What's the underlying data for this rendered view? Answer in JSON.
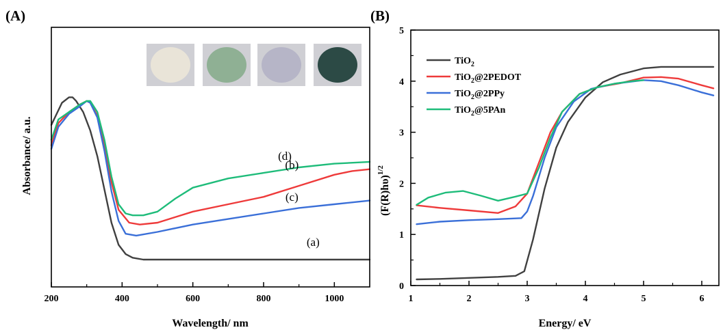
{
  "chart_data": [
    {
      "panel": "(A)",
      "type": "line",
      "xlabel": "Wavelength/ nm",
      "ylabel": "Absorbance/ a.u.",
      "xlim": [
        200,
        1100
      ],
      "ylim": [
        0,
        1
      ],
      "xticks": [
        200,
        400,
        600,
        800,
        1000
      ],
      "yticks": [],
      "grid": false,
      "legend": "none",
      "inset": "four sample powder photos (white, light green, light grey-blue, dark green)",
      "series": [
        {
          "label": "(a)",
          "color": "#404040",
          "x": [
            200,
            230,
            250,
            260,
            270,
            290,
            310,
            330,
            350,
            370,
            390,
            410,
            430,
            460,
            500,
            600,
            800,
            1000,
            1100
          ],
          "y": [
            0.73,
            0.85,
            0.88,
            0.88,
            0.86,
            0.8,
            0.7,
            0.56,
            0.38,
            0.2,
            0.08,
            0.03,
            0.01,
            0.0,
            0.0,
            0.0,
            0.0,
            0.0,
            0.0
          ]
        },
        {
          "label": "(b)",
          "color": "#ee3a3a",
          "x": [
            200,
            220,
            250,
            280,
            300,
            310,
            330,
            350,
            370,
            390,
            420,
            450,
            500,
            550,
            600,
            700,
            800,
            900,
            1000,
            1050,
            1100
          ],
          "y": [
            0.62,
            0.74,
            0.8,
            0.84,
            0.86,
            0.85,
            0.78,
            0.62,
            0.42,
            0.27,
            0.2,
            0.19,
            0.2,
            0.23,
            0.26,
            0.3,
            0.34,
            0.4,
            0.46,
            0.48,
            0.49
          ]
        },
        {
          "label": "(c)",
          "color": "#3a6fd8",
          "x": [
            200,
            220,
            250,
            280,
            300,
            310,
            330,
            350,
            370,
            390,
            410,
            440,
            500,
            600,
            700,
            800,
            900,
            1000,
            1100
          ],
          "y": [
            0.6,
            0.72,
            0.79,
            0.83,
            0.86,
            0.85,
            0.77,
            0.59,
            0.37,
            0.21,
            0.14,
            0.13,
            0.15,
            0.19,
            0.22,
            0.25,
            0.28,
            0.3,
            0.32
          ]
        },
        {
          "label": "(d)",
          "color": "#1ebc7a",
          "x": [
            200,
            220,
            250,
            280,
            300,
            310,
            330,
            350,
            370,
            390,
            410,
            430,
            460,
            500,
            550,
            600,
            700,
            800,
            900,
            1000,
            1100
          ],
          "y": [
            0.65,
            0.76,
            0.8,
            0.84,
            0.86,
            0.86,
            0.8,
            0.65,
            0.45,
            0.3,
            0.25,
            0.24,
            0.24,
            0.26,
            0.33,
            0.39,
            0.44,
            0.47,
            0.5,
            0.52,
            0.53
          ]
        }
      ]
    },
    {
      "panel": "(B)",
      "type": "line",
      "xlabel": "Energy/ eV",
      "ylabel": "(F(R)hυ)1/2",
      "xlim": [
        1,
        6.4
      ],
      "ylim": [
        0,
        5
      ],
      "xticks": [
        1,
        2,
        3,
        4,
        5,
        6
      ],
      "yticks": [
        0,
        1,
        2,
        3,
        4,
        5
      ],
      "grid": false,
      "legend": "top-left",
      "series": [
        {
          "name": "TiO2",
          "color": "#404040",
          "x": [
            1.1,
            1.5,
            2.0,
            2.5,
            2.8,
            2.95,
            3.1,
            3.3,
            3.5,
            3.7,
            4.0,
            4.3,
            4.6,
            5.0,
            5.3,
            5.6,
            6.0,
            6.2
          ],
          "y": [
            0.12,
            0.13,
            0.15,
            0.17,
            0.19,
            0.28,
            0.9,
            1.9,
            2.7,
            3.2,
            3.68,
            3.98,
            4.13,
            4.25,
            4.28,
            4.28,
            4.28,
            4.28
          ]
        },
        {
          "name": "TiO2@2PEDOT",
          "color": "#ee3a3a",
          "x": [
            1.1,
            1.5,
            2.0,
            2.5,
            2.8,
            3.0,
            3.2,
            3.4,
            3.6,
            3.9,
            4.2,
            4.6,
            5.0,
            5.3,
            5.6,
            6.0,
            6.2
          ],
          "y": [
            1.57,
            1.52,
            1.47,
            1.42,
            1.55,
            1.8,
            2.4,
            3.0,
            3.4,
            3.75,
            3.88,
            3.96,
            4.07,
            4.08,
            4.05,
            3.92,
            3.86
          ]
        },
        {
          "name": "TiO2@2PPy",
          "color": "#3a6fd8",
          "x": [
            1.1,
            1.5,
            2.0,
            2.5,
            2.9,
            3.0,
            3.1,
            3.3,
            3.5,
            3.8,
            4.1,
            4.5,
            5.0,
            5.3,
            5.6,
            6.0,
            6.2
          ],
          "y": [
            1.2,
            1.25,
            1.28,
            1.3,
            1.32,
            1.45,
            1.75,
            2.5,
            3.1,
            3.6,
            3.85,
            3.95,
            4.02,
            4.0,
            3.92,
            3.78,
            3.72
          ]
        },
        {
          "name": "TiO2@5PAn",
          "color": "#1ebc7a",
          "x": [
            1.1,
            1.3,
            1.6,
            1.9,
            2.2,
            2.5,
            2.8,
            3.0,
            3.2,
            3.4,
            3.6,
            3.9,
            4.2,
            4.5,
            4.8,
            5.0
          ],
          "y": [
            1.58,
            1.72,
            1.82,
            1.85,
            1.76,
            1.66,
            1.74,
            1.8,
            2.3,
            2.9,
            3.4,
            3.75,
            3.88,
            3.95,
            4.0,
            4.02
          ]
        }
      ]
    }
  ],
  "legend_B": [
    {
      "base": "TiO",
      "sub": "2",
      "rest": ""
    },
    {
      "base": "TiO",
      "sub": "2",
      "rest": "@2PEDOT"
    },
    {
      "base": "TiO",
      "sub": "2",
      "rest": "@2PPy"
    },
    {
      "base": "TiO",
      "sub": "2",
      "rest": "@5PAn"
    }
  ],
  "ylabel_B_parts": {
    "main": "(F(R)hυ)",
    "sup": "1/2"
  },
  "inset_colors": [
    "#e9e4d8",
    "#8fb094",
    "#b6b5c7",
    "#2c4a45"
  ]
}
